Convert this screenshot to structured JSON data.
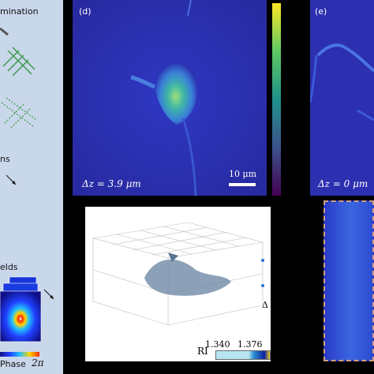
{
  "left_panel": {
    "illumination_fragment": "mination",
    "ns_fragment": "ns",
    "fields_fragment": "elds",
    "phase_label": "Phase",
    "phase_max": "2π"
  },
  "panel_d": {
    "label": "(d)",
    "dz": "Δz = 3.9 μm",
    "scalebar": "10 μm"
  },
  "panel_e": {
    "label": "(e)",
    "dz": "Δz = 0 μm"
  },
  "colorbar": {
    "colors": [
      "#fde725",
      "#5ec962",
      "#21918c",
      "#3b528b",
      "#440154"
    ]
  },
  "panel_3d": {
    "ri_label": "RI",
    "ri_min": "1.340",
    "ri_max": "1.376",
    "axis_fragment": "Δ"
  }
}
